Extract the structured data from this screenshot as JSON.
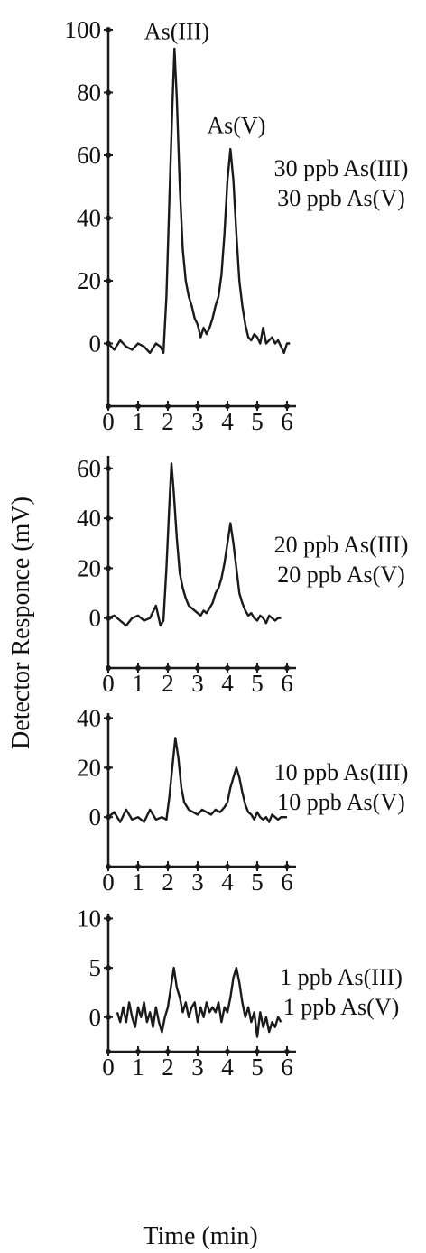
{
  "chart_data": [
    {
      "type": "line",
      "ylim": [
        -20,
        100
      ],
      "yticks": [
        0,
        20,
        40,
        60,
        80,
        100
      ],
      "xlim": [
        0,
        6
      ],
      "xticks": [
        0,
        1,
        2,
        3,
        4,
        5,
        6
      ],
      "legend": [
        "30 ppb As(III)",
        "30 ppb As(V)"
      ],
      "annotations": [
        {
          "text": "As(III)",
          "x": 2.3,
          "y": 97
        },
        {
          "text": "As(V)",
          "x": 4.3,
          "y": 67
        }
      ],
      "series": [
        {
          "x": [
            0,
            0.2,
            0.4,
            0.6,
            0.8,
            1.0,
            1.2,
            1.4,
            1.6,
            1.75,
            1.85,
            1.95,
            2.05,
            2.15,
            2.22,
            2.3,
            2.4,
            2.5,
            2.6,
            2.7,
            2.8,
            2.9,
            3.0,
            3.1,
            3.2,
            3.3,
            3.4,
            3.5,
            3.6,
            3.7,
            3.8,
            3.9,
            4.0,
            4.1,
            4.2,
            4.3,
            4.4,
            4.5,
            4.6,
            4.7,
            4.8,
            4.9,
            5.0,
            5.1,
            5.2,
            5.3,
            5.4,
            5.5,
            5.6,
            5.7,
            5.8,
            5.9,
            6.0,
            6.1
          ],
          "y": [
            0,
            -2,
            1,
            -1,
            -2,
            0,
            -1,
            -3,
            0,
            -1,
            -3,
            15,
            45,
            75,
            94,
            78,
            50,
            30,
            20,
            15,
            12,
            8,
            6,
            2,
            5,
            3,
            5,
            8,
            12,
            15,
            22,
            35,
            52,
            62,
            52,
            35,
            20,
            12,
            6,
            2,
            1,
            3,
            2,
            0,
            5,
            0,
            1,
            2,
            0,
            1,
            -1,
            -3,
            0,
            0
          ]
        }
      ]
    },
    {
      "type": "line",
      "ylim": [
        -20,
        65
      ],
      "yticks": [
        0,
        20,
        40,
        60
      ],
      "xlim": [
        0,
        6
      ],
      "xticks": [
        0,
        1,
        2,
        3,
        4,
        5,
        6
      ],
      "legend": [
        "20 ppb As(III)",
        "20 ppb As(V)"
      ],
      "series": [
        {
          "x": [
            0,
            0.2,
            0.4,
            0.6,
            0.8,
            1.0,
            1.2,
            1.4,
            1.6,
            1.75,
            1.85,
            1.95,
            2.05,
            2.12,
            2.2,
            2.3,
            2.4,
            2.5,
            2.6,
            2.7,
            2.8,
            2.9,
            3.0,
            3.1,
            3.2,
            3.3,
            3.4,
            3.5,
            3.6,
            3.7,
            3.8,
            3.9,
            4.0,
            4.1,
            4.2,
            4.3,
            4.4,
            4.5,
            4.6,
            4.7,
            4.8,
            4.9,
            5.0,
            5.1,
            5.2,
            5.3,
            5.4,
            5.5,
            5.6,
            5.7,
            5.8
          ],
          "y": [
            0,
            1,
            -1,
            -3,
            0,
            1,
            -1,
            0,
            5,
            -3,
            -1,
            20,
            45,
            62,
            50,
            32,
            18,
            12,
            8,
            5,
            4,
            3,
            2,
            1,
            3,
            2,
            4,
            6,
            10,
            12,
            16,
            22,
            30,
            38,
            30,
            20,
            10,
            6,
            3,
            1,
            2,
            0,
            -1,
            1,
            0,
            -2,
            1,
            0,
            -1,
            0,
            0
          ]
        }
      ]
    },
    {
      "type": "line",
      "ylim": [
        -20,
        42
      ],
      "yticks": [
        0,
        20,
        40
      ],
      "xlim": [
        0,
        6
      ],
      "xticks": [
        0,
        1,
        2,
        3,
        4,
        5,
        6
      ],
      "legend": [
        "10 ppb As(III)",
        "10 ppb As(V)"
      ],
      "series": [
        {
          "x": [
            0,
            0.2,
            0.4,
            0.6,
            0.8,
            1.0,
            1.2,
            1.4,
            1.6,
            1.8,
            1.95,
            2.05,
            2.15,
            2.25,
            2.35,
            2.45,
            2.55,
            2.7,
            2.85,
            3.0,
            3.15,
            3.3,
            3.45,
            3.6,
            3.75,
            3.9,
            4.0,
            4.1,
            4.2,
            4.3,
            4.4,
            4.5,
            4.6,
            4.7,
            4.8,
            4.9,
            5.0,
            5.1,
            5.2,
            5.3,
            5.4,
            5.5,
            5.6,
            5.7,
            5.8,
            5.9,
            6.0
          ],
          "y": [
            0,
            2,
            -2,
            3,
            -1,
            0,
            -2,
            3,
            -1,
            0,
            -1,
            8,
            20,
            32,
            24,
            12,
            6,
            3,
            2,
            1,
            3,
            2,
            1,
            3,
            2,
            4,
            6,
            12,
            16,
            20,
            16,
            10,
            5,
            2,
            1,
            -1,
            2,
            0,
            -1,
            0,
            -2,
            1,
            0,
            -1,
            0,
            0,
            0
          ]
        }
      ]
    },
    {
      "type": "line",
      "ylim": [
        -3.5,
        10.5
      ],
      "yticks": [
        0,
        5,
        10
      ],
      "xlim": [
        0,
        6
      ],
      "xticks": [
        0,
        1,
        2,
        3,
        4,
        5,
        6
      ],
      "legend": [
        "1 ppb As(III)",
        "1 ppb As(V)"
      ],
      "series": [
        {
          "x": [
            0.3,
            0.4,
            0.5,
            0.6,
            0.7,
            0.8,
            0.9,
            1.0,
            1.1,
            1.2,
            1.3,
            1.4,
            1.5,
            1.6,
            1.7,
            1.8,
            1.9,
            2.0,
            2.1,
            2.2,
            2.3,
            2.4,
            2.5,
            2.6,
            2.7,
            2.8,
            2.9,
            3.0,
            3.1,
            3.2,
            3.3,
            3.4,
            3.5,
            3.6,
            3.7,
            3.8,
            3.9,
            4.0,
            4.1,
            4.2,
            4.3,
            4.4,
            4.5,
            4.6,
            4.7,
            4.8,
            4.9,
            5.0,
            5.1,
            5.2,
            5.3,
            5.4,
            5.5,
            5.6,
            5.7,
            5.8
          ],
          "y": [
            0.5,
            -0.5,
            1,
            -0.5,
            1.5,
            0,
            -1,
            1,
            0,
            1.5,
            -0.5,
            0.5,
            -1,
            1,
            -0.5,
            -1.5,
            0,
            1,
            3,
            5,
            3,
            2,
            0.5,
            1.5,
            0,
            1,
            1.5,
            -0.5,
            1,
            0,
            1.5,
            0.5,
            1,
            0.5,
            1.5,
            -0.5,
            1,
            0.5,
            2,
            4,
            5,
            3.5,
            1.5,
            0,
            1,
            -0.5,
            0.5,
            -2,
            0.5,
            -1,
            0,
            -1.5,
            -0.5,
            -1,
            0,
            -0.5
          ]
        }
      ]
    }
  ],
  "ylabel": "Detector Responce (mV)",
  "xlabel": "Time (min)",
  "line_color": "#1a1a1a"
}
